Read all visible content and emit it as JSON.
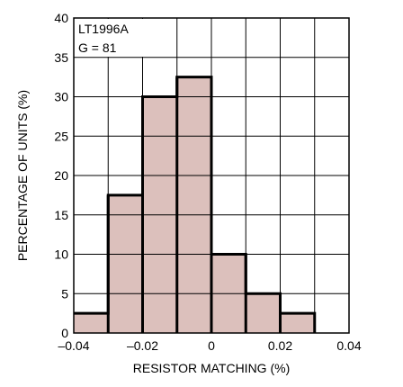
{
  "chart_data": {
    "type": "bar",
    "subtype": "histogram",
    "bin_edges": [
      -0.04,
      -0.03,
      -0.02,
      -0.01,
      0,
      0.01,
      0.02,
      0.03
    ],
    "values": [
      2.5,
      17.5,
      30,
      32.5,
      10,
      5,
      2.5
    ],
    "xlim": [
      -0.04,
      0.04
    ],
    "ylim": [
      0,
      40
    ],
    "x_ticks": [
      -0.04,
      -0.02,
      0,
      0.02,
      0.04
    ],
    "x_tick_labels": [
      "–0.04",
      "–0.02",
      "0",
      "0.02",
      "0.04"
    ],
    "y_ticks": [
      0,
      5,
      10,
      15,
      20,
      25,
      30,
      35,
      40
    ],
    "y_tick_labels": [
      "0",
      "5",
      "10",
      "15",
      "20",
      "25",
      "30",
      "35",
      "40"
    ],
    "x_grid_step": 0.01,
    "grid": true,
    "xlabel": "RESISTOR MATCHING (%)",
    "ylabel": "PERCENTAGE OF UNITS (%)",
    "annotation": [
      "LT1996A",
      "G = 81"
    ],
    "annotation_placement": "top-left",
    "colors": {
      "bar_fill": "#dcc0bc",
      "bar_outline": "#000000",
      "grid": "#000000"
    }
  }
}
